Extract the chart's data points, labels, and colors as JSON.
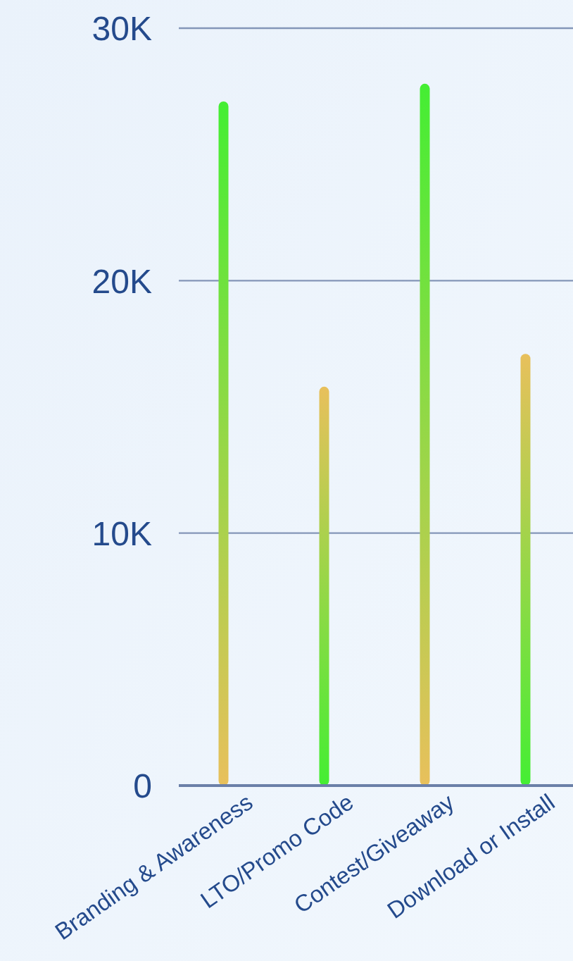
{
  "chart_data": {
    "type": "bar",
    "categories": [
      "Branding & Awareness",
      "LTO/Promo Code",
      "Contest/Giveaway",
      "Download or Install"
    ],
    "values": [
      27100,
      15800,
      27800,
      17100
    ],
    "colors": [
      "#44ee33",
      "#e8c05c",
      "#44ee33",
      "#e8c05c"
    ],
    "ylim": [
      0,
      30000
    ],
    "yticks": [
      0,
      {
        "value": 10000,
        "label": "10K"
      },
      {
        "value": 20000,
        "label": "20K"
      },
      {
        "value": 30000,
        "label": "30K"
      }
    ],
    "grid": "y"
  }
}
